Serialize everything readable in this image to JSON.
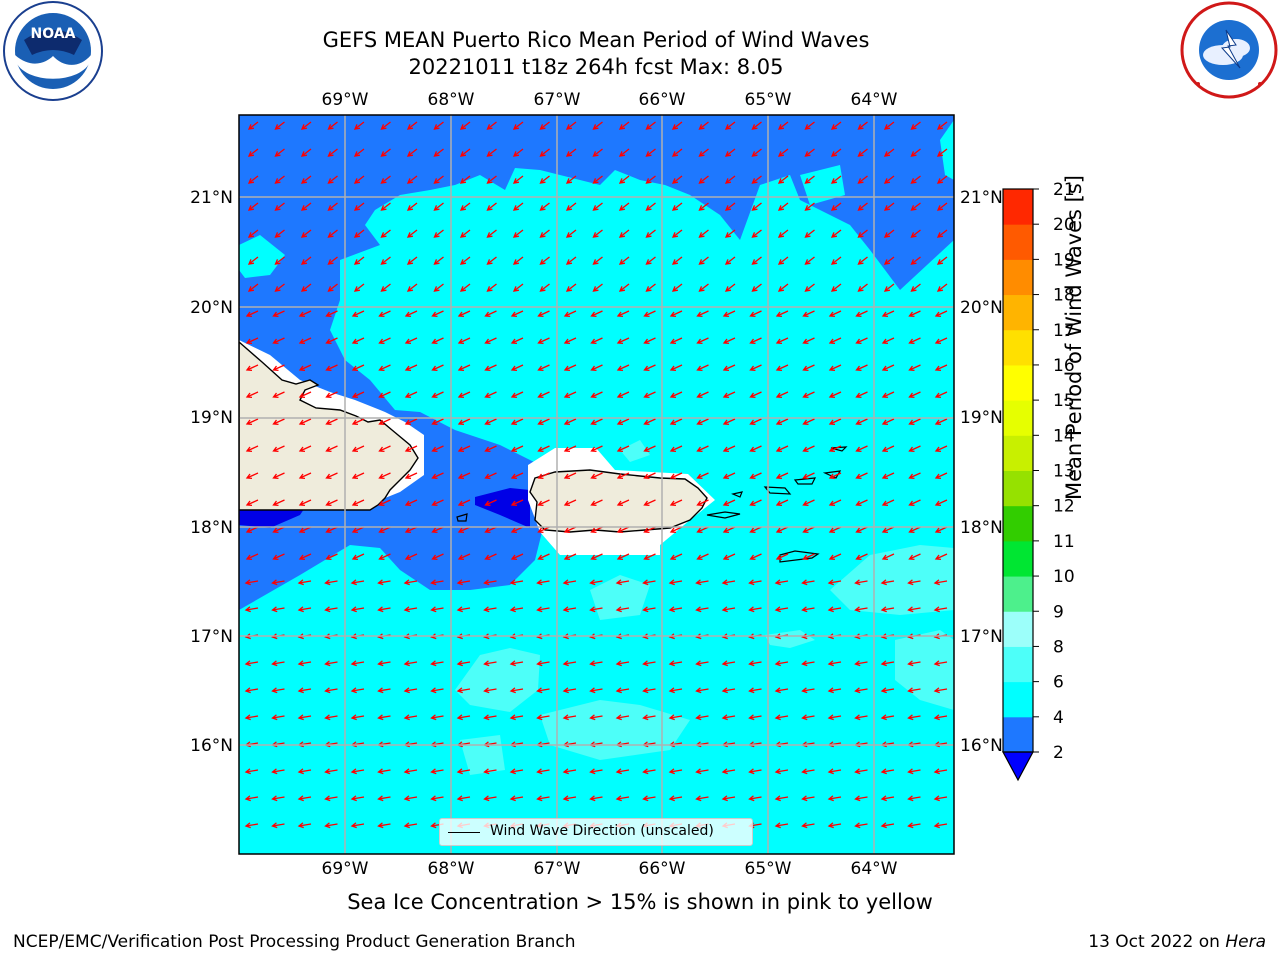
{
  "title": {
    "line1": "GEFS MEAN Puerto Rico Mean Period of Wind Waves",
    "line2": "20221011 t18z 264h fcst   Max: 8.05"
  },
  "logos": {
    "left": {
      "name": "noaa-logo",
      "text": "NOAA"
    },
    "right": {
      "name": "nws-logo"
    }
  },
  "map": {
    "lon_labels": [
      "69°W",
      "68°W",
      "67°W",
      "66°W",
      "65°W",
      "64°W"
    ],
    "lat_labels": [
      "21°N",
      "20°N",
      "19°N",
      "18°N",
      "17°N",
      "16°N"
    ],
    "legend_label": "Wind Wave Direction (unscaled)",
    "colors": {
      "land": "#efecdc",
      "ocean_2_4": "#1e78ff",
      "ocean_4_6": "#00ffff",
      "ocean_6_8": "#4dfff9",
      "below_2": "#0000e6",
      "arrow": "#ff0000"
    }
  },
  "colorbar": {
    "label": "Mean Period of Wind Waves [s]",
    "ticks": [
      "2",
      "4",
      "6",
      "8",
      "9",
      "10",
      "11",
      "12",
      "13",
      "14",
      "15",
      "16",
      "17",
      "18",
      "19",
      "20",
      "21"
    ],
    "colors": [
      "#1e78ff",
      "#00ffff",
      "#4dfff9",
      "#9cfffa",
      "#4df08c",
      "#00e632",
      "#32cd00",
      "#96e100",
      "#c8f000",
      "#e6ff00",
      "#ffff00",
      "#ffe000",
      "#ffb400",
      "#ff8c00",
      "#ff5a00",
      "#ff2800",
      "#ff0000"
    ],
    "extend_color": "#0000ff"
  },
  "caption": "Sea Ice Concentration > 15% is shown in pink to yellow",
  "footer": {
    "left": "NCEP/EMC/Verification Post Processing Product Generation Branch",
    "right_date": "13 Oct 2022 on ",
    "right_host": "Hera"
  }
}
